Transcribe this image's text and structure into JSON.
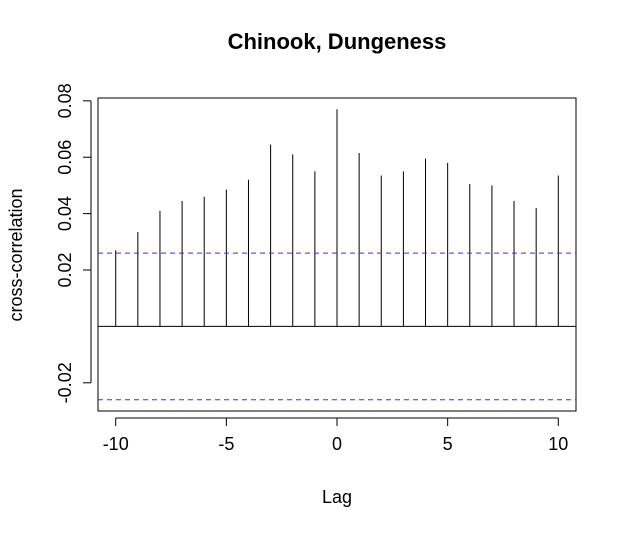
{
  "chart_data": {
    "type": "bar",
    "title": "Chinook, Dungeness",
    "xlabel": "Lag",
    "ylabel": "cross-correlation",
    "xlim": [
      -10.8,
      10.8
    ],
    "ylim": [
      -0.03,
      0.081
    ],
    "x_ticks": [
      -10,
      -5,
      0,
      5,
      10
    ],
    "x_tick_labels": [
      "-10",
      "-5",
      "0",
      "5",
      "10"
    ],
    "y_ticks": [
      -0.02,
      0.02,
      0.04,
      0.06,
      0.08
    ],
    "y_tick_labels": [
      "-0.02",
      "0.02",
      "0.04",
      "0.06",
      "0.08"
    ],
    "x": [
      -10,
      -9,
      -8,
      -7,
      -6,
      -5,
      -4,
      -3,
      -2,
      -1,
      0,
      1,
      2,
      3,
      4,
      5,
      6,
      7,
      8,
      9,
      10
    ],
    "values": [
      0.027,
      0.0335,
      0.041,
      0.0445,
      0.046,
      0.0485,
      0.052,
      0.0645,
      0.061,
      0.055,
      0.077,
      0.0615,
      0.0535,
      0.055,
      0.0595,
      0.058,
      0.0505,
      0.05,
      0.0445,
      0.042,
      0.0535
    ],
    "confidence_bounds": [
      0.026,
      -0.026
    ],
    "zero_line": 0,
    "grid": false,
    "colors": {
      "spikes": "#000000",
      "bounds": "#3333ee",
      "frame": "#000000"
    }
  }
}
